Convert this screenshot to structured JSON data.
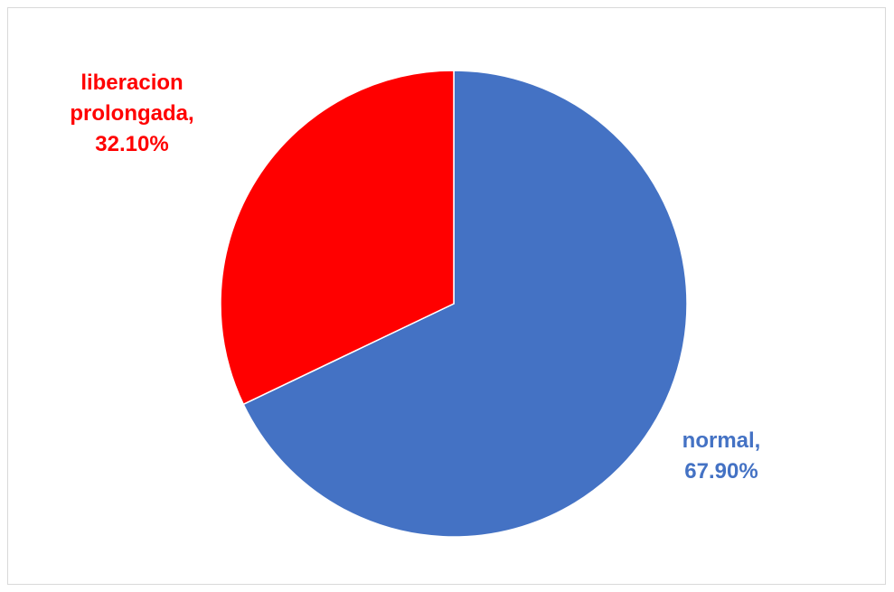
{
  "chart_data": {
    "type": "pie",
    "slices": [
      {
        "name": "normal",
        "value": 67.9,
        "label_lines": [
          "normal,",
          "67.90%"
        ],
        "color": "#4472C4"
      },
      {
        "name": "liberacion prolongada",
        "value": 32.1,
        "label_lines": [
          "liberacion",
          "prolongada,",
          "32.10%"
        ],
        "color": "#FF0000"
      }
    ],
    "start_angle_deg": 0,
    "direction": "clockwise",
    "legend": "none"
  }
}
